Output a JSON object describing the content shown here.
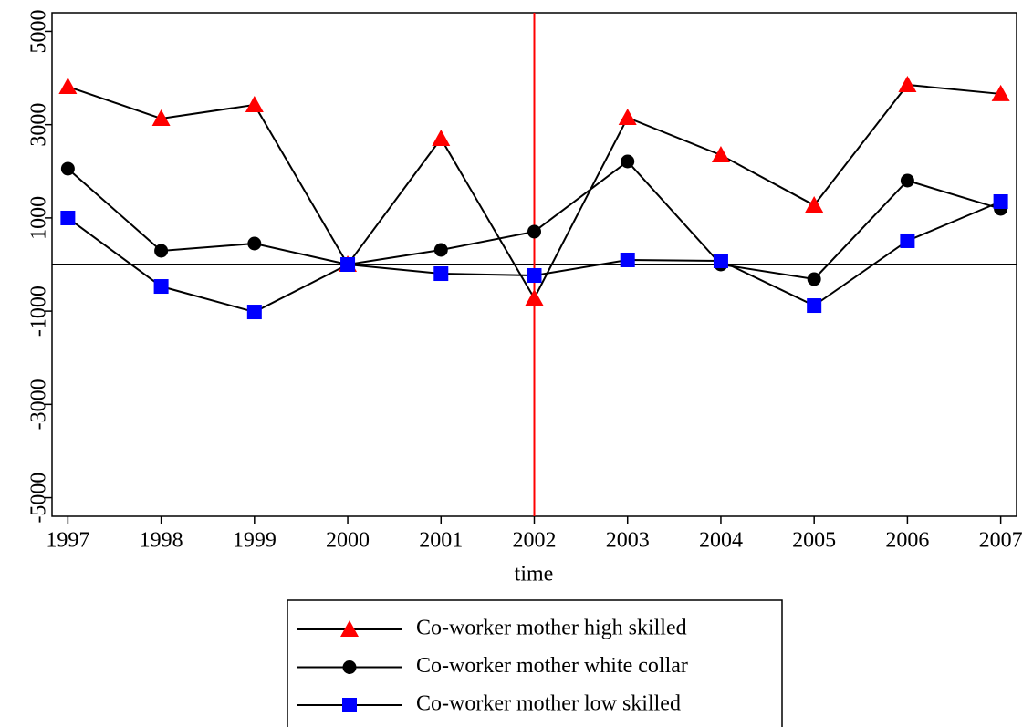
{
  "chart_data": {
    "type": "line",
    "xlabel": "time",
    "x": [
      1997,
      1998,
      1999,
      2000,
      2001,
      2002,
      2003,
      2004,
      2005,
      2006,
      2007
    ],
    "xlim": [
      1996.83,
      2007.17
    ],
    "xticks": [
      1997,
      1998,
      1999,
      2000,
      2001,
      2002,
      2003,
      2004,
      2005,
      2006,
      2007
    ],
    "ylim": [
      -5400,
      5400
    ],
    "yticks": [
      -5000,
      -3000,
      -1000,
      1000,
      3000,
      5000
    ],
    "line_color": "#000000",
    "vline": {
      "x": 2002,
      "color": "#ff0000"
    },
    "hline": 0,
    "legend": "bottom",
    "series": [
      {
        "name": "Co-worker mother high skilled",
        "color": "#ff0000",
        "marker": "triangle",
        "values": [
          3816,
          3131,
          3425,
          0,
          2700,
          -724,
          3150,
          2348,
          1272,
          3855,
          3660
        ]
      },
      {
        "name": "Co-worker mother white collar",
        "color": "#000000",
        "marker": "circle",
        "values": [
          2055,
          294,
          450,
          0,
          313,
          705,
          2211,
          0,
          -313,
          1800,
          1194
        ]
      },
      {
        "name": "Co-worker mother low skilled",
        "color": "#0000ff",
        "marker": "square",
        "values": [
          998,
          -470,
          -1018,
          0,
          -196,
          -235,
          98,
          78,
          -881,
          509,
          1350
        ]
      }
    ]
  }
}
